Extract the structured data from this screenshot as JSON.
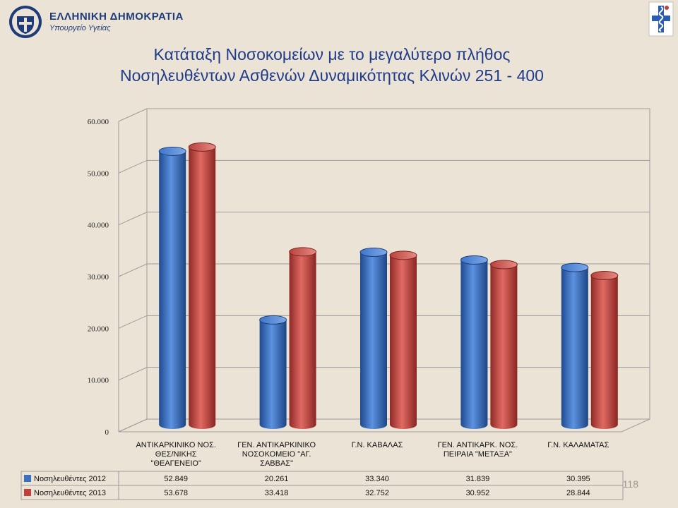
{
  "header": {
    "org_name": "ΕΛΛΗΝΙΚΗ ΔΗΜΟΚΡΑΤΙΑ",
    "ministry": "Υπουργείο Υγείας"
  },
  "colors": {
    "series_2012": "#3a6ebf",
    "series_2013": "#c2403c",
    "brand": "#1f3b78"
  },
  "chart_data": {
    "type": "bar",
    "title": "Κατάταξη Νοσοκομείων με το μεγαλύτερο πλήθος Νοσηλευθέντων Ασθενών Δυναμικότητας Κλινών 251 - 400",
    "title_lines": [
      "Κατάταξη Νοσοκομείων με το μεγαλύτερο πλήθος",
      "Νοσηλευθέντων Ασθενών Δυναμικότητας Κλινών 251 - 400"
    ],
    "categories": [
      [
        "ΑΝΤΙΚΑΡΚΙΝΙΚΟ ΝΟΣ.",
        "ΘΕΣ/ΝΙΚΗΣ",
        "\"ΘΕΑΓΕΝΕΙΟ\""
      ],
      [
        "ΓΕΝ. ΑΝΤΙΚΑΡΚΙΝΙΚΟ",
        "ΝΟΣΟΚΟΜΕΙΟ \"ΑΓ.",
        "ΣΑΒΒΑΣ\""
      ],
      [
        "Γ.Ν. ΚΑΒΑΛΑΣ"
      ],
      [
        "ΓΕΝ. ΑΝΤΙΚΑΡΚ. ΝΟΣ.",
        "ΠΕΙΡΑΙΑ \"ΜΕΤΑΞΑ\""
      ],
      [
        "Γ.Ν. ΚΑΛΑΜΑΤΑΣ"
      ]
    ],
    "series": [
      {
        "name": "Νοσηλευθέντες 2012",
        "values": [
          52849,
          20261,
          33340,
          31839,
          30395
        ],
        "labels": [
          "52.849",
          "20.261",
          "33.340",
          "31.839",
          "30.395"
        ]
      },
      {
        "name": "Νοσηλευθέντες 2013",
        "values": [
          53678,
          33418,
          32752,
          30952,
          28844
        ],
        "labels": [
          "53.678",
          "33.418",
          "32.752",
          "30.952",
          "28.844"
        ]
      }
    ],
    "ylim": [
      0,
      60000
    ],
    "yticks": [
      0,
      10000,
      20000,
      30000,
      40000,
      50000,
      60000
    ],
    "ytick_labels": [
      "0",
      "10.000",
      "20.000",
      "30.000",
      "40.000",
      "50.000",
      "60.000"
    ],
    "grid": true,
    "legend": "data-table"
  },
  "footer": {
    "page_number": "118"
  }
}
